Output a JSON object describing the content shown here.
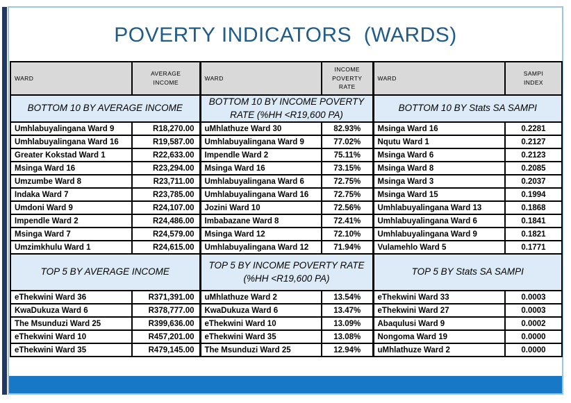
{
  "title": "POVERTY INDICATORS  (WARDS)",
  "colors": {
    "title_blue": "#1F5C8B",
    "bar_blue": "#1878C8",
    "leftbar_navy": "#1F3864",
    "header_gray": "#D9D9D9",
    "section_blue": "#DCEBF7",
    "border_light": "#9DC3E6",
    "cell_border": "#000000"
  },
  "groups": [
    {
      "ward_header": "WARD",
      "value_header": "AVERAGE INCOME",
      "bottom_title": "BOTTOM 10 BY AVERAGE INCOME",
      "bottom_rows": [
        [
          "Umhlabuyalingana Ward 9",
          "R18,270.00"
        ],
        [
          "Umhlabuyalingana Ward 16",
          "R19,587.00"
        ],
        [
          "Greater Kokstad Ward 1",
          "R22,633.00"
        ],
        [
          "Msinga Ward 16",
          "R23,294.00"
        ],
        [
          "Umzumbe Ward 8",
          "R23,711.00"
        ],
        [
          "Indaka Ward 7",
          "R23,785.00"
        ],
        [
          "Umdoni Ward 9",
          "R24,107.00"
        ],
        [
          "Impendle Ward 2",
          "R24,486.00"
        ],
        [
          "Msinga Ward 7",
          "R24,579.00"
        ],
        [
          "Umzimkhulu Ward 1",
          "R24,615.00"
        ]
      ],
      "top_title": "TOP 5 BY AVERAGE INCOME",
      "top_rows": [
        [
          "eThekwini Ward 36",
          "R371,391.00"
        ],
        [
          "KwaDukuza Ward 6",
          "R378,777.00"
        ],
        [
          "The Msunduzi Ward 25",
          "R399,636.00"
        ],
        [
          "eThekwini Ward 10",
          "R457,201.00"
        ],
        [
          "eThekwini Ward 35",
          "R479,145.00"
        ]
      ]
    },
    {
      "ward_header": "WARD",
      "value_header": "INCOME POVERTY RATE",
      "bottom_title": "BOTTOM 10 BY INCOME POVERTY RATE (%HH <R19,600 PA)",
      "bottom_rows": [
        [
          "uMhlathuze Ward 30",
          "82.93%"
        ],
        [
          "Umhlabuyalingana Ward 9",
          "77.02%"
        ],
        [
          "Impendle Ward 2",
          "75.11%"
        ],
        [
          "Msinga Ward 16",
          "73.15%"
        ],
        [
          "Umhlabuyalingana Ward 6",
          "72.75%"
        ],
        [
          "Umhlabuyalingana Ward 16",
          "72.75%"
        ],
        [
          "Jozini Ward 10",
          "72.56%"
        ],
        [
          "Imbabazane Ward 8",
          "72.41%"
        ],
        [
          "Msinga Ward 12",
          "72.10%"
        ],
        [
          "Umhlabuyalingana Ward 12",
          "71.94%"
        ]
      ],
      "top_title": "TOP 5 BY INCOME POVERTY RATE (%HH <R19,600 PA)",
      "top_rows": [
        [
          "uMhlathuze Ward 2",
          "13.54%"
        ],
        [
          "KwaDukuza Ward 6",
          "13.47%"
        ],
        [
          "eThekwini Ward 10",
          "13.09%"
        ],
        [
          "eThekwini Ward 35",
          "13.08%"
        ],
        [
          "The Msunduzi Ward 25",
          "12.94%"
        ]
      ]
    },
    {
      "ward_header": "WARD",
      "value_header": "SAMPI INDEX",
      "bottom_title": "BOTTOM 10 BY Stats SA SAMPI",
      "bottom_rows": [
        [
          "Msinga Ward 16",
          "0.2281"
        ],
        [
          "Nqutu Ward 1",
          "0.2127"
        ],
        [
          "Msinga Ward 6",
          "0.2123"
        ],
        [
          "Msinga Ward 8",
          "0.2085"
        ],
        [
          "Msinga Ward 3",
          "0.2037"
        ],
        [
          "Msinga Ward 15",
          "0.1994"
        ],
        [
          "Umhlabuyalingana Ward 13",
          "0.1868"
        ],
        [
          "Umhlabuyalingana Ward 6",
          "0.1841"
        ],
        [
          "Umhlabuyalingana Ward 9",
          "0.1821"
        ],
        [
          "Vulamehlo Ward 5",
          "0.1771"
        ]
      ],
      "top_title": "TOP 5 BY Stats SA SAMPI",
      "top_rows": [
        [
          "eThekwini Ward 33",
          "0.0003"
        ],
        [
          "eThekwini Ward 27",
          "0.0003"
        ],
        [
          "Abaqulusi Ward 9",
          "0.0002"
        ],
        [
          "Nongoma Ward 19",
          "0.0000"
        ],
        [
          "uMhlathuze Ward 2",
          "0.0000"
        ]
      ]
    }
  ]
}
